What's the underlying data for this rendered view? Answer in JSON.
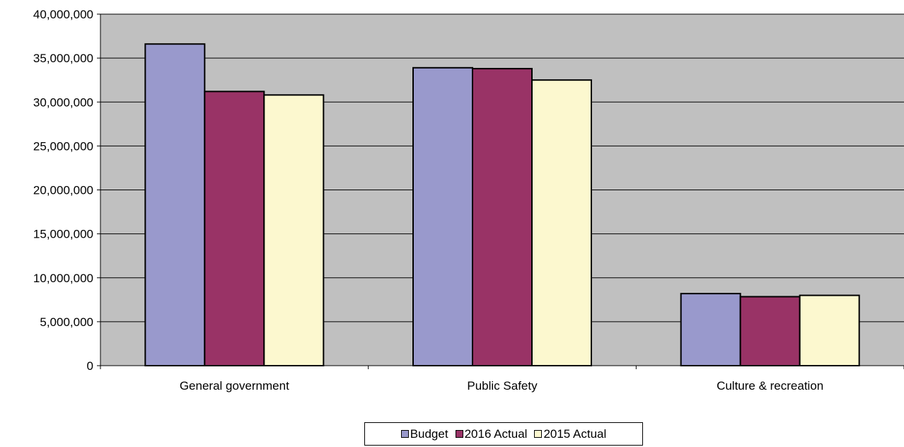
{
  "chart_data": {
    "type": "bar",
    "categories": [
      "General government",
      "Public Safety",
      "Culture & recreation"
    ],
    "series": [
      {
        "name": "Budget",
        "color": "#9999cc",
        "values": [
          36600000,
          33900000,
          8200000
        ]
      },
      {
        "name": "2016 Actual",
        "color": "#993366",
        "values": [
          31200000,
          33800000,
          7850000
        ]
      },
      {
        "name": "2015 Actual",
        "color": "#fcf8cf",
        "values": [
          30800000,
          32500000,
          8000000
        ]
      }
    ],
    "ylim": [
      0,
      40000000
    ],
    "ytick_labels": [
      "0",
      "5,000,000",
      "10,000,000",
      "15,000,000",
      "20,000,000",
      "25,000,000",
      "30,000,000",
      "35,000,000",
      "40,000,000"
    ],
    "plot_background": "#c0c0c0",
    "grid": true,
    "legend_position": "bottom",
    "title": "",
    "xlabel": "",
    "ylabel": ""
  }
}
